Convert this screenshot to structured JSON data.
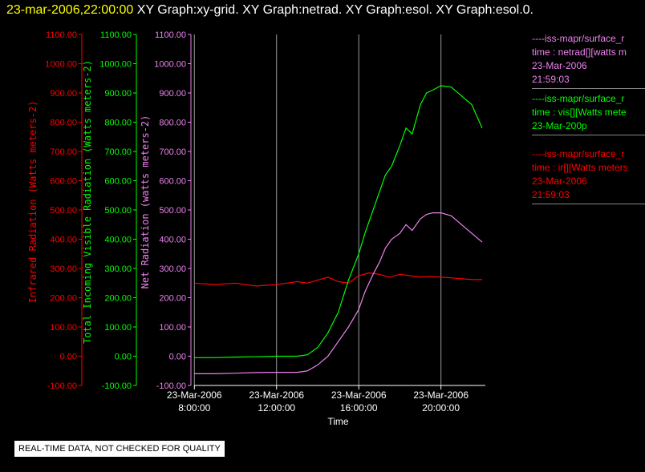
{
  "header": {
    "timestamp": "23-mar-2006,22:00:00",
    "graphs": "XY Graph:xy-grid.  XY Graph:netrad.  XY Graph:esol.  XY Graph:esol.0."
  },
  "banner": "REAL-TIME DATA, NOT CHECKED FOR QUALITY",
  "legend": [
    {
      "lines": [
        "----iss-mapr/surface_r",
        "time : netrad[][watts m",
        "23-Mar-2006",
        "21:59:03"
      ],
      "color": "#ee82ee"
    },
    {
      "lines": [
        "----iss-mapr/surface_r",
        "time : vis[][Watts mete",
        "23-Mar-200p"
      ],
      "color": "#00ff00"
    },
    {
      "lines": [
        "----iss-mapr/surface_r",
        "time : ir[][Watts meters",
        "23-Mar-2006",
        "21:59:03"
      ],
      "color": "#ff0000"
    }
  ],
  "chart_data": {
    "type": "line",
    "xlabel": "Time",
    "x_ticks": [
      {
        "date": "23-Mar-2006",
        "time": "8:00:00",
        "hour": 8
      },
      {
        "date": "23-Mar-2006",
        "time": "12:00:00",
        "hour": 12
      },
      {
        "date": "23-Mar-2006",
        "time": "16:00:00",
        "hour": 16
      },
      {
        "date": "23-Mar-2006",
        "time": "20:00:00",
        "hour": 20
      }
    ],
    "y_axes": [
      {
        "label": "Infrared Radiation (Watts meters-2)",
        "color": "#ff0000",
        "ticks": [
          "1100.00",
          "1000.00",
          "900.00",
          "800.00",
          "700.00",
          "600.00",
          "500.00",
          "400.00",
          "300.00",
          "200.00",
          "100.00",
          "0.00",
          "-100.00"
        ]
      },
      {
        "label": "Total Incoming Visible Radiation (Watts meters-2)",
        "color": "#00ff00",
        "ticks": [
          "1100.00",
          "1000.00",
          "900.00",
          "800.00",
          "700.00",
          "600.00",
          "500.00",
          "400.00",
          "300.00",
          "200.00",
          "100.00",
          "0.00",
          "-100.00"
        ]
      },
      {
        "label": "Net Radiation (watts meters-2)",
        "color": "#ee82ee",
        "ticks": [
          "1100.00",
          "1000.00",
          "900.00",
          "800.00",
          "700.00",
          "600.00",
          "500.00",
          "400.00",
          "300.00",
          "200.00",
          "100.00",
          "0.00",
          "-100.00"
        ]
      }
    ],
    "ylim": [
      -100,
      1100
    ],
    "x_units": "hours of 23-Mar-2006",
    "xlim": [
      7.99,
      22.16
    ],
    "grid": "vertical lines at x ticks",
    "series": [
      {
        "color": "#ff0000",
        "x": [
          8.0,
          9.0,
          10.0,
          11.0,
          12.0,
          12.5,
          13.0,
          13.5,
          14.0,
          14.5,
          15.0,
          15.5,
          16.0,
          16.5,
          17.0,
          17.5,
          18.0,
          18.5,
          19.0,
          19.5,
          20.0,
          20.5,
          21.0,
          21.5,
          22.0
        ],
        "values": [
          250,
          245,
          250,
          240,
          245,
          250,
          255,
          250,
          260,
          270,
          255,
          250,
          275,
          285,
          280,
          270,
          280,
          275,
          270,
          272,
          270,
          268,
          265,
          262,
          262
        ]
      },
      {
        "color": "#00ff00",
        "x": [
          8.0,
          9.0,
          10.0,
          11.0,
          12.0,
          13.0,
          13.5,
          14.0,
          14.5,
          15.0,
          15.5,
          16.0,
          16.3,
          16.7,
          17.0,
          17.3,
          17.6,
          18.0,
          18.3,
          18.6,
          19.0,
          19.3,
          19.6,
          20.0,
          20.5,
          21.0,
          21.5,
          22.0
        ],
        "values": [
          -5,
          -5,
          -3,
          -2,
          0,
          0,
          5,
          30,
          80,
          150,
          260,
          350,
          420,
          500,
          560,
          620,
          650,
          720,
          780,
          760,
          860,
          900,
          910,
          925,
          920,
          890,
          860,
          780
        ]
      },
      {
        "color": "#ee82ee",
        "x": [
          8.0,
          9.0,
          10.0,
          11.0,
          12.0,
          13.0,
          13.5,
          14.0,
          14.5,
          15.0,
          15.5,
          16.0,
          16.3,
          16.7,
          17.0,
          17.3,
          17.6,
          18.0,
          18.3,
          18.6,
          19.0,
          19.3,
          19.6,
          20.0,
          20.5,
          21.0,
          21.5,
          22.0
        ],
        "values": [
          -60,
          -60,
          -58,
          -56,
          -55,
          -55,
          -50,
          -30,
          0,
          50,
          100,
          160,
          220,
          280,
          320,
          370,
          400,
          420,
          450,
          430,
          470,
          485,
          490,
          490,
          480,
          450,
          420,
          390
        ]
      }
    ]
  }
}
